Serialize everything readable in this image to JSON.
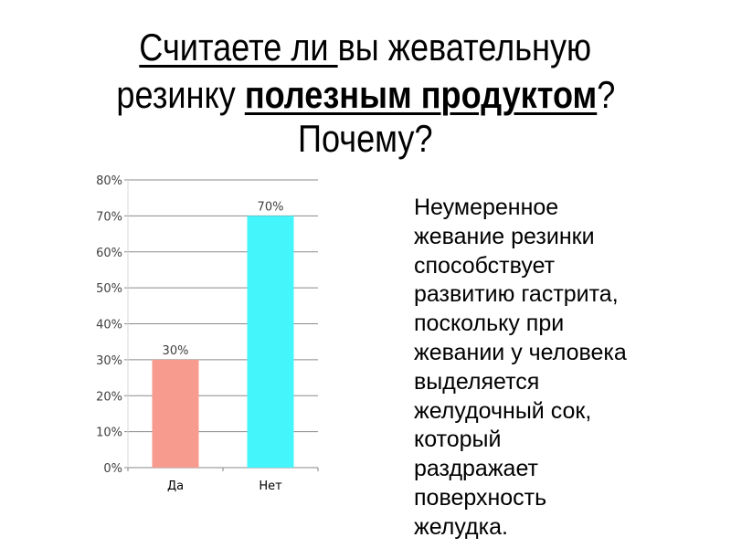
{
  "title": {
    "line1_underlined": "Считаете ли ",
    "line1_rest": "вы жевательную",
    "line2_start": "резинку ",
    "line2_bold": "полезным продуктом",
    "line2_end": "?",
    "line3": "Почему?"
  },
  "body_lines": [
    "Неумеренное",
    "жевание резинки",
    "способствует",
    "развитию гастрита,",
    "поскольку при",
    "жевании у человека",
    "выделяется",
    "желудочный сок,",
    "который",
    "раздражает",
    "поверхность",
    "желудка."
  ],
  "chart_data": {
    "type": "bar",
    "categories": [
      "Да",
      "Нет"
    ],
    "values": [
      30,
      70
    ],
    "data_labels": [
      "30%",
      "70%"
    ],
    "colors": [
      "#f79b8f",
      "#44f5fc"
    ],
    "ylim": [
      0,
      80
    ],
    "yticks": [
      "0%",
      "10%",
      "20%",
      "30%",
      "40%",
      "50%",
      "60%",
      "70%",
      "80%"
    ],
    "grid": true,
    "legend": "none"
  }
}
